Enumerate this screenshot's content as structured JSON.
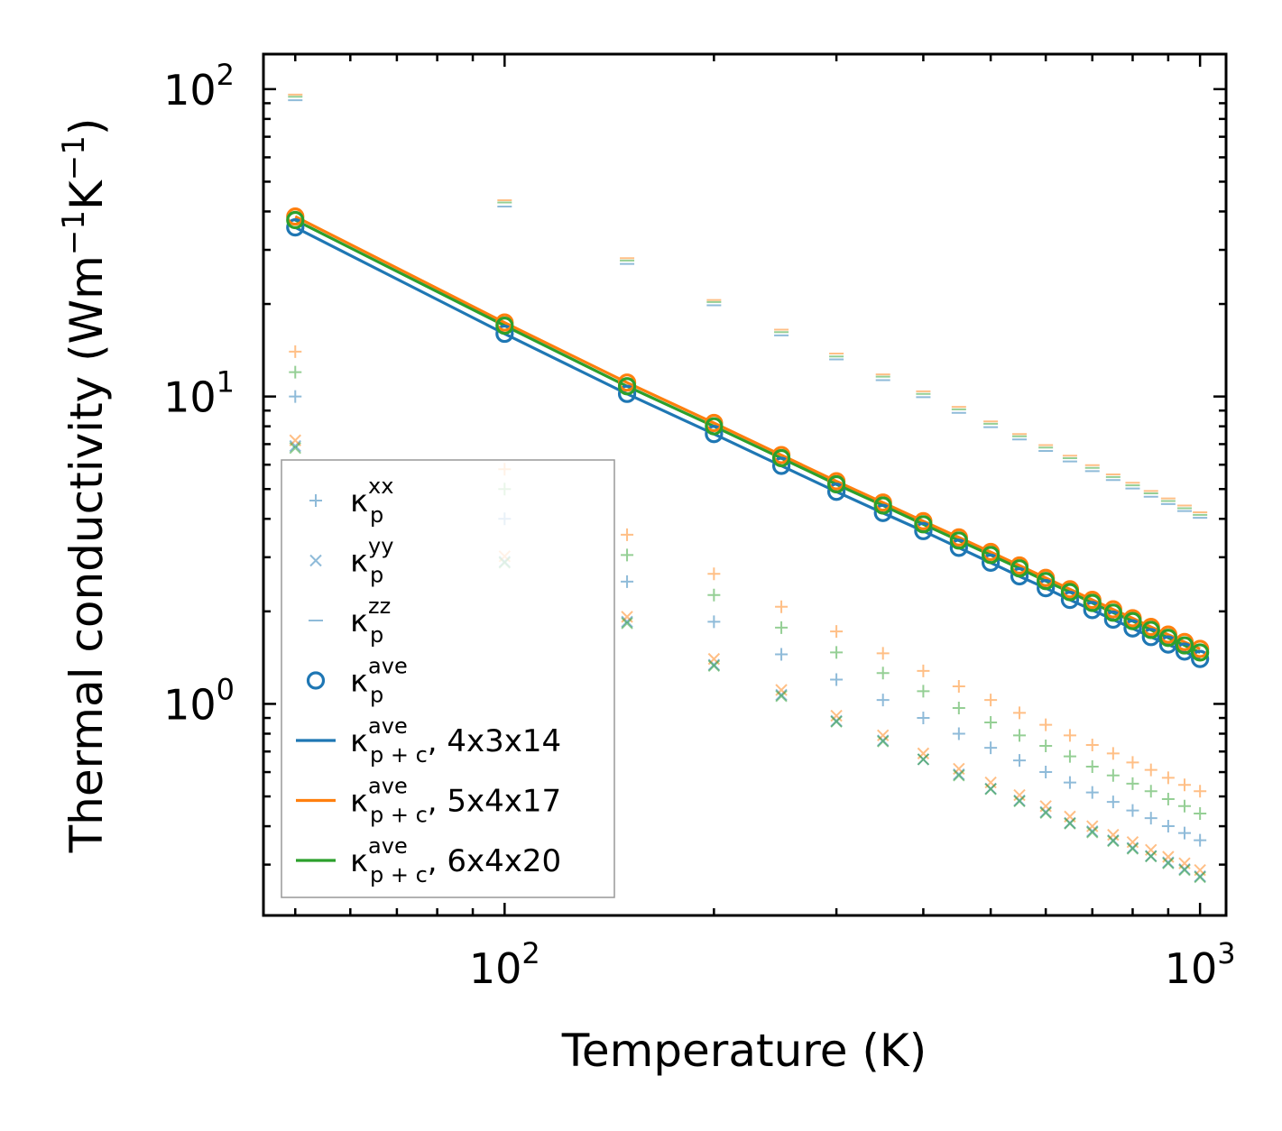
{
  "chart_data": {
    "type": "scatter",
    "xscale": "log",
    "yscale": "log",
    "xlabel": "Temperature (K)",
    "ylabel": "Thermal conductivity (Wm$^{-1}$K$^{-1}$)",
    "ylabel_parts": {
      "base": "Thermal conductivity (Wm",
      "sup1": "−1",
      "mid": "K",
      "sup2": "−1",
      "end": ")"
    },
    "xlim": [
      45,
      1090
    ],
    "ylim": [
      0.205,
      130
    ],
    "xticks": [
      {
        "value": 100,
        "base": "10",
        "exp": "2"
      },
      {
        "value": 1000,
        "base": "10",
        "exp": "3"
      }
    ],
    "yticks": [
      {
        "value": 1,
        "base": "10",
        "exp": "0"
      },
      {
        "value": 10,
        "base": "10",
        "exp": "1"
      },
      {
        "value": 100,
        "base": "10",
        "exp": "2"
      }
    ],
    "x": [
      50,
      100,
      150,
      200,
      250,
      300,
      350,
      400,
      450,
      500,
      550,
      600,
      650,
      700,
      750,
      800,
      850,
      900,
      950,
      1000
    ],
    "colors": {
      "blue": "#1f77b4",
      "orange": "#ff7f0e",
      "green": "#2ca02c"
    },
    "series": [
      {
        "name": "kp_xx_blue",
        "marker": "plus",
        "color": "#1f77b4",
        "alpha": 0.5,
        "values": [
          10.0,
          4.0,
          2.5,
          1.85,
          1.45,
          1.2,
          1.03,
          0.9,
          0.8,
          0.72,
          0.655,
          0.6,
          0.555,
          0.515,
          0.48,
          0.45,
          0.425,
          0.4,
          0.38,
          0.36
        ]
      },
      {
        "name": "kp_xx_orange",
        "marker": "plus",
        "color": "#ff7f0e",
        "alpha": 0.5,
        "values": [
          14.0,
          5.8,
          3.55,
          2.65,
          2.07,
          1.72,
          1.46,
          1.28,
          1.14,
          1.03,
          0.935,
          0.855,
          0.79,
          0.735,
          0.69,
          0.645,
          0.61,
          0.575,
          0.545,
          0.52
        ]
      },
      {
        "name": "kp_xx_green",
        "marker": "plus",
        "color": "#2ca02c",
        "alpha": 0.5,
        "values": [
          12.0,
          5.0,
          3.05,
          2.26,
          1.77,
          1.47,
          1.26,
          1.1,
          0.97,
          0.87,
          0.79,
          0.73,
          0.675,
          0.625,
          0.585,
          0.55,
          0.52,
          0.49,
          0.465,
          0.44
        ]
      },
      {
        "name": "kp_yy_blue",
        "marker": "x",
        "color": "#1f77b4",
        "alpha": 0.5,
        "values": [
          6.9,
          2.9,
          1.85,
          1.34,
          1.07,
          0.88,
          0.76,
          0.66,
          0.59,
          0.53,
          0.485,
          0.445,
          0.41,
          0.385,
          0.36,
          0.34,
          0.32,
          0.305,
          0.29,
          0.275
        ]
      },
      {
        "name": "kp_yy_orange",
        "marker": "x",
        "color": "#ff7f0e",
        "alpha": 0.5,
        "values": [
          7.2,
          3.02,
          1.92,
          1.4,
          1.11,
          0.915,
          0.79,
          0.69,
          0.615,
          0.555,
          0.505,
          0.465,
          0.43,
          0.4,
          0.375,
          0.355,
          0.335,
          0.318,
          0.303,
          0.288
        ]
      },
      {
        "name": "kp_yy_green",
        "marker": "x",
        "color": "#2ca02c",
        "alpha": 0.5,
        "values": [
          6.8,
          2.88,
          1.83,
          1.33,
          1.06,
          0.875,
          0.755,
          0.66,
          0.585,
          0.528,
          0.482,
          0.442,
          0.408,
          0.382,
          0.358,
          0.338,
          0.319,
          0.303,
          0.288,
          0.273
        ]
      },
      {
        "name": "kp_zz_blue",
        "marker": "hline",
        "color": "#1f77b4",
        "alpha": 0.5,
        "values": [
          92,
          41.5,
          27,
          19.8,
          15.8,
          13.2,
          11.3,
          9.95,
          8.85,
          7.95,
          7.25,
          6.65,
          6.15,
          5.72,
          5.35,
          5.02,
          4.72,
          4.47,
          4.24,
          4.03
        ]
      },
      {
        "name": "kp_zz_orange",
        "marker": "hline",
        "color": "#ff7f0e",
        "alpha": 0.5,
        "values": [
          96,
          43.5,
          28.2,
          20.6,
          16.5,
          13.8,
          11.8,
          10.4,
          9.25,
          8.3,
          7.55,
          6.95,
          6.42,
          5.98,
          5.58,
          5.24,
          4.93,
          4.66,
          4.42,
          4.2
        ]
      },
      {
        "name": "kp_zz_green",
        "marker": "hline",
        "color": "#2ca02c",
        "alpha": 0.5,
        "values": [
          94.5,
          42.8,
          27.7,
          20.3,
          16.2,
          13.5,
          11.6,
          10.2,
          9.08,
          8.15,
          7.42,
          6.82,
          6.3,
          5.86,
          5.47,
          5.14,
          4.84,
          4.57,
          4.33,
          4.12
        ]
      },
      {
        "name": "kp_ave_blue",
        "marker": "circle",
        "color": "#1f77b4",
        "alpha": 1,
        "values": [
          35.5,
          16.0,
          10.2,
          7.55,
          5.95,
          4.9,
          4.18,
          3.65,
          3.22,
          2.88,
          2.6,
          2.38,
          2.18,
          2.02,
          1.88,
          1.76,
          1.65,
          1.56,
          1.48,
          1.4
        ]
      },
      {
        "name": "kp_ave_orange",
        "marker": "circle",
        "color": "#ff7f0e",
        "alpha": 1,
        "values": [
          38.5,
          17.4,
          11.1,
          8.2,
          6.45,
          5.3,
          4.52,
          3.93,
          3.48,
          3.12,
          2.82,
          2.57,
          2.36,
          2.18,
          2.03,
          1.9,
          1.78,
          1.68,
          1.59,
          1.51
        ]
      },
      {
        "name": "kp_ave_green",
        "marker": "circle",
        "color": "#2ca02c",
        "alpha": 1,
        "values": [
          37.5,
          17.0,
          10.8,
          8.0,
          6.3,
          5.18,
          4.42,
          3.84,
          3.4,
          3.05,
          2.76,
          2.51,
          2.31,
          2.13,
          1.98,
          1.86,
          1.74,
          1.64,
          1.55,
          1.47
        ]
      },
      {
        "name": "kpc_ave_4x3x14",
        "marker": "line",
        "color": "#1f77b4",
        "alpha": 1,
        "values": [
          35.5,
          16.0,
          10.2,
          7.55,
          5.95,
          4.9,
          4.18,
          3.65,
          3.22,
          2.88,
          2.6,
          2.38,
          2.18,
          2.02,
          1.88,
          1.76,
          1.65,
          1.56,
          1.48,
          1.4
        ]
      },
      {
        "name": "kpc_ave_5x4x17",
        "marker": "line",
        "color": "#ff7f0e",
        "alpha": 1,
        "values": [
          38.5,
          17.4,
          11.1,
          8.2,
          6.45,
          5.3,
          4.52,
          3.93,
          3.48,
          3.12,
          2.82,
          2.57,
          2.36,
          2.18,
          2.03,
          1.9,
          1.78,
          1.68,
          1.59,
          1.51
        ]
      },
      {
        "name": "kpc_ave_6x4x20",
        "marker": "line",
        "color": "#2ca02c",
        "alpha": 1,
        "values": [
          37.5,
          17.0,
          10.8,
          8.0,
          6.3,
          5.18,
          4.42,
          3.84,
          3.4,
          3.05,
          2.76,
          2.51,
          2.31,
          2.13,
          1.98,
          1.86,
          1.74,
          1.64,
          1.55,
          1.47
        ]
      }
    ],
    "legend": {
      "location": "lower-left",
      "entries": [
        {
          "marker": "plus",
          "color": "#1f77b4",
          "alpha": 0.5,
          "kappa": "κ",
          "sub": "p",
          "sup": "xx",
          "suffix": ""
        },
        {
          "marker": "x",
          "color": "#1f77b4",
          "alpha": 0.5,
          "kappa": "κ",
          "sub": "p",
          "sup": "yy",
          "suffix": ""
        },
        {
          "marker": "hline",
          "color": "#1f77b4",
          "alpha": 0.5,
          "kappa": "κ",
          "sub": "p",
          "sup": "zz",
          "suffix": ""
        },
        {
          "marker": "circle",
          "color": "#1f77b4",
          "alpha": 1,
          "kappa": "κ",
          "sub": "p",
          "sup": "ave",
          "suffix": ""
        },
        {
          "marker": "line",
          "color": "#1f77b4",
          "alpha": 1,
          "kappa": "κ",
          "sub": "p + c",
          "sup": "ave",
          "suffix": ", 4x3x14"
        },
        {
          "marker": "line",
          "color": "#ff7f0e",
          "alpha": 1,
          "kappa": "κ",
          "sub": "p + c",
          "sup": "ave",
          "suffix": ", 5x4x17"
        },
        {
          "marker": "line",
          "color": "#2ca02c",
          "alpha": 1,
          "kappa": "κ",
          "sub": "p + c",
          "sup": "ave",
          "suffix": ", 6x4x20"
        }
      ]
    }
  }
}
